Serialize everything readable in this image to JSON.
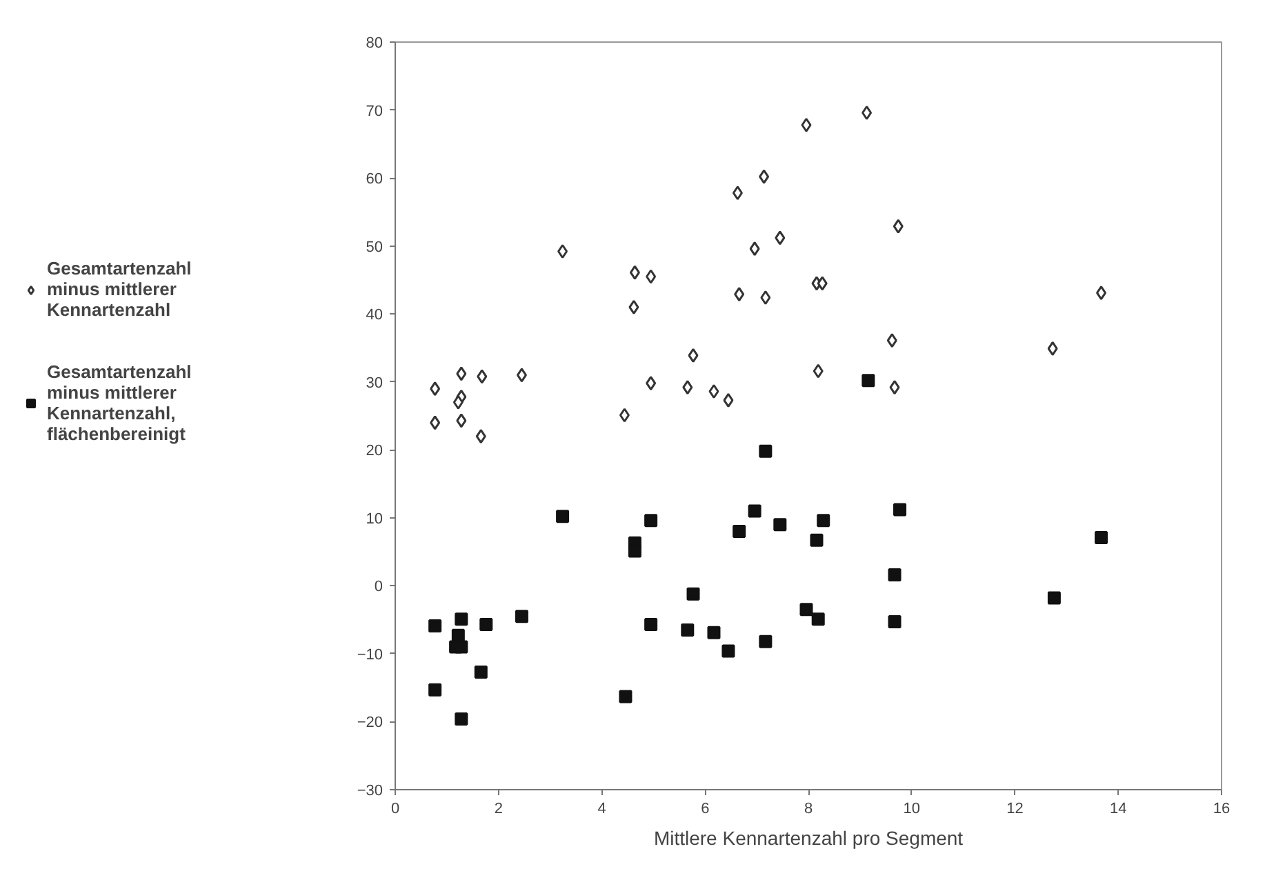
{
  "chart_data": {
    "type": "scatter",
    "xlabel": "Mittlere Kennartenzahl pro Segment",
    "xlim": [
      0,
      16
    ],
    "xticks": [
      0,
      2,
      4,
      6,
      8,
      10,
      12,
      14,
      16
    ],
    "ylim": [
      -30,
      80
    ],
    "yticks": [
      -30,
      -20,
      -10,
      0,
      10,
      20,
      30,
      40,
      50,
      60,
      70,
      80
    ],
    "grid": false,
    "legend": "left",
    "series": [
      {
        "name": "Gesamtartenzahl minus mittlerer Kennartenzahl",
        "color": "#333333",
        "marker": "diamond",
        "x": [
          0.77,
          0.77,
          1.28,
          1.28,
          1.22,
          1.28,
          1.68,
          1.66,
          2.45,
          3.24,
          4.64,
          4.95,
          4.62,
          4.44,
          4.95,
          5.77,
          5.66,
          6.17,
          6.45,
          6.63,
          6.66,
          6.96,
          7.14,
          7.17,
          7.45,
          7.96,
          8.16,
          8.27,
          8.19,
          9.13,
          9.62,
          9.67,
          9.74,
          12.73,
          13.67
        ],
        "values": [
          29,
          24,
          31.2,
          27.8,
          27,
          24.3,
          30.8,
          22,
          31,
          49.2,
          46.1,
          45.5,
          41,
          25.1,
          29.8,
          33.9,
          29.2,
          28.6,
          27.3,
          57.8,
          42.9,
          49.6,
          60.2,
          42.4,
          51.2,
          67.8,
          44.5,
          44.5,
          31.6,
          69.6,
          36.1,
          29.2,
          52.9,
          34.9,
          43.1
        ]
      },
      {
        "name": "Gesamtartenzahl minus mittlerer Kennartenzahl, flächenbereinigt",
        "color": "#111111",
        "marker": "square",
        "x": [
          0.77,
          0.77,
          1.28,
          1.22,
          1.17,
          1.28,
          1.28,
          1.76,
          1.66,
          2.45,
          3.24,
          4.64,
          4.64,
          4.95,
          4.95,
          4.46,
          5.77,
          5.66,
          6.17,
          6.45,
          6.66,
          6.96,
          7.17,
          7.17,
          7.45,
          7.96,
          8.19,
          8.16,
          8.29,
          9.16,
          9.77,
          9.67,
          9.67,
          12.76,
          13.67
        ],
        "values": [
          -5.9,
          -15.3,
          -4.9,
          -7.3,
          -9,
          -9,
          -19.6,
          -5.7,
          -12.7,
          -4.5,
          10.2,
          6.3,
          5.1,
          9.6,
          -5.7,
          -16.3,
          -1.2,
          -6.5,
          -6.9,
          -9.6,
          8,
          11,
          19.8,
          -8.2,
          9,
          -3.5,
          -4.9,
          6.7,
          9.6,
          30.2,
          11.2,
          1.6,
          -5.3,
          -1.8,
          7.1
        ]
      }
    ]
  }
}
